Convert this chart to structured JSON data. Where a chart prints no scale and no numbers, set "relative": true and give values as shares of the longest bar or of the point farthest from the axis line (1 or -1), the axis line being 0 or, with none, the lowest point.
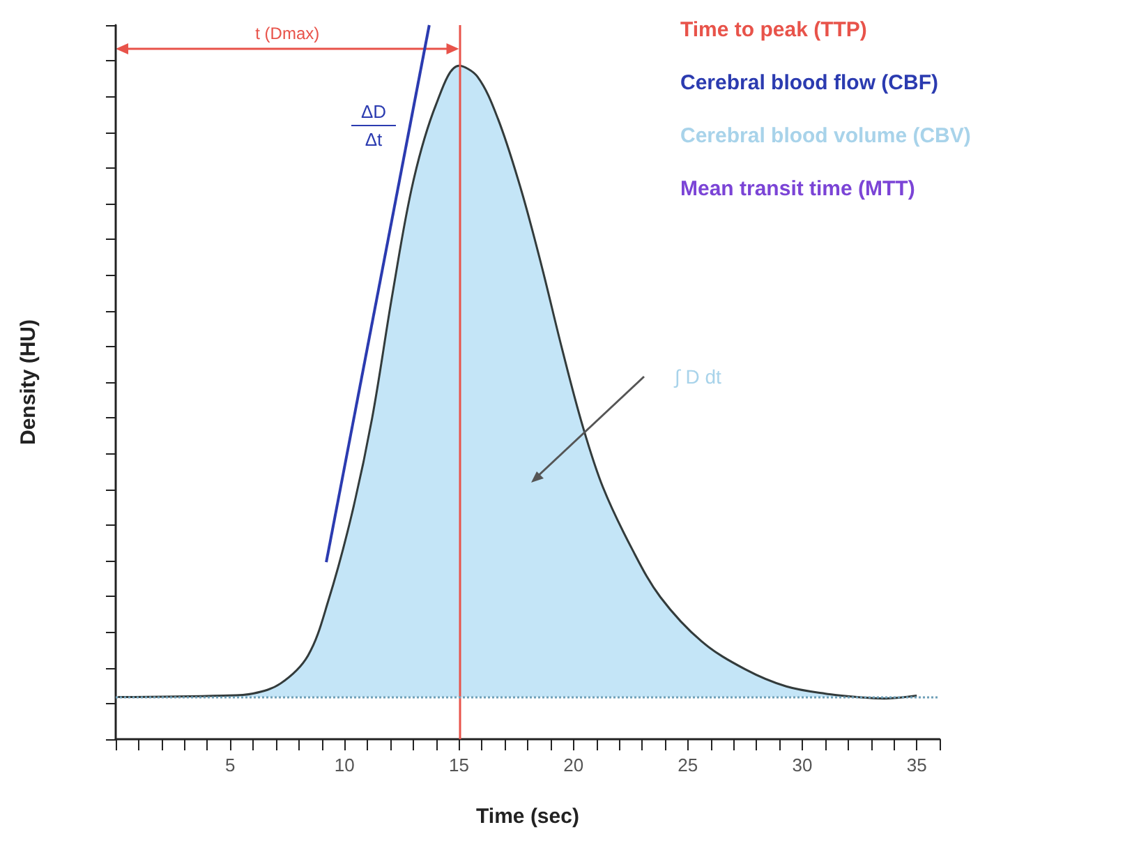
{
  "chart_data": {
    "type": "area",
    "relative": true,
    "xlabel": "Time (sec)",
    "ylabel": "Density (HU)",
    "xlim": [
      0,
      36
    ],
    "xticks": [
      {
        "value": 0,
        "label": null
      },
      {
        "value": 1,
        "label": null
      },
      {
        "value": 2,
        "label": null
      },
      {
        "value": 3,
        "label": null
      },
      {
        "value": 4,
        "label": null
      },
      5,
      {
        "value": 6,
        "label": null
      },
      {
        "value": 7,
        "label": null
      },
      {
        "value": 8,
        "label": null
      },
      {
        "value": 9,
        "label": null
      },
      10,
      {
        "value": 11,
        "label": null
      },
      {
        "value": 12,
        "label": null
      },
      {
        "value": 13,
        "label": null
      },
      {
        "value": 14,
        "label": null
      },
      15,
      {
        "value": 16,
        "label": null
      },
      {
        "value": 17,
        "label": null
      },
      {
        "value": 18,
        "label": null
      },
      {
        "value": 19,
        "label": null
      },
      20,
      {
        "value": 21,
        "label": null
      },
      {
        "value": 22,
        "label": null
      },
      {
        "value": 23,
        "label": null
      },
      {
        "value": 24,
        "label": null
      },
      25,
      {
        "value": 26,
        "label": null
      },
      {
        "value": 27,
        "label": null
      },
      {
        "value": 28,
        "label": null
      },
      {
        "value": 29,
        "label": null
      },
      30,
      {
        "value": 31,
        "label": null
      },
      {
        "value": 32,
        "label": null
      },
      {
        "value": 33,
        "label": null
      },
      {
        "value": 34,
        "label": null
      },
      35,
      {
        "value": 36,
        "label": null
      }
    ],
    "series": [
      {
        "color": "#c4e5f7",
        "x": [
          0.1,
          4.7,
          6,
          7.2,
          8.4,
          9.3,
          10.3,
          11.2,
          12.1,
          13,
          14,
          15,
          15.8,
          16.7,
          17.7,
          18.6,
          19.5,
          20.4,
          21.3,
          22.6,
          23.8,
          25.6,
          27.5,
          29.3,
          31.2,
          32.4,
          33.6,
          35
        ],
        "values": [
          0.059,
          0.061,
          0.064,
          0.078,
          0.117,
          0.195,
          0.313,
          0.449,
          0.625,
          0.781,
          0.889,
          0.943,
          0.928,
          0.869,
          0.771,
          0.664,
          0.547,
          0.439,
          0.352,
          0.264,
          0.199,
          0.137,
          0.098,
          0.074,
          0.063,
          0.059,
          0.057,
          0.061
        ]
      },
      {
        "type": "line",
        "color": "#2b3bb0",
        "x": [
          9.2,
          13.7
        ],
        "values": [
          0.248,
          1
        ]
      }
    ],
    "ref_lines": [
      {
        "axis": "x",
        "value": 15,
        "color": "#e8534a",
        "line_style": "solid"
      },
      {
        "axis": "y",
        "value": 0.059,
        "color": "#6fa0b8",
        "line_style": "dotted"
      }
    ],
    "grid": false,
    "marker": "none",
    "annotations": [
      "t (Dmax)",
      "ΔD",
      "Δt",
      "∫ D dt",
      "Time to peak (TTP)",
      "Cerebral blood flow (CBF)",
      "Cerebral blood volume (CBV)",
      "Mean transit time (MTT)"
    ]
  }
}
